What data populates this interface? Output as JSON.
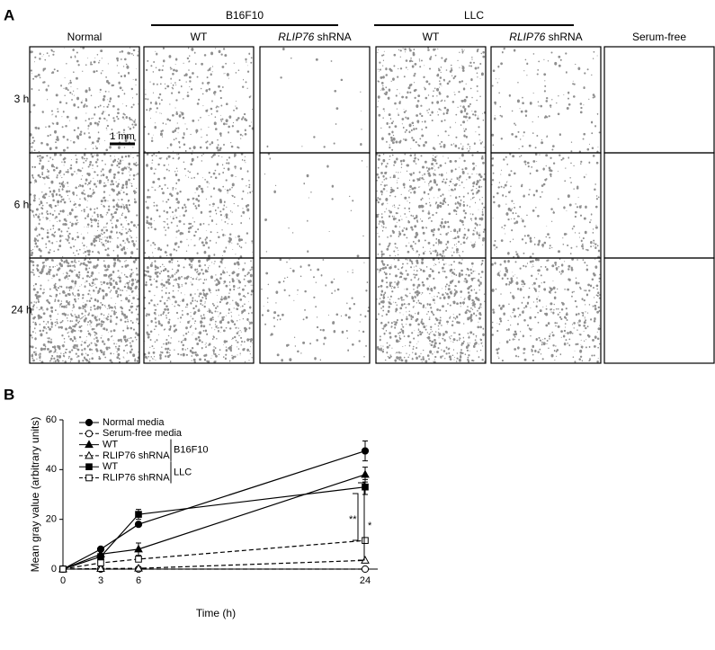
{
  "panel_a": {
    "label": "A",
    "groups": [
      "B16F10",
      "LLC"
    ],
    "columns": [
      {
        "text": "Normal"
      },
      {
        "text": "WT"
      },
      {
        "gene": "RLIP76",
        "text": "shRNA"
      },
      {
        "text": "WT"
      },
      {
        "gene": "RLIP76",
        "text": "shRNA"
      },
      {
        "text": "Serum-free"
      }
    ],
    "rows": [
      "3 h",
      "6 h",
      "24 h"
    ],
    "scale_bar": "1 mm"
  },
  "panel_b": {
    "label": "B"
  },
  "chart_data": {
    "type": "line",
    "x_label": "Time (h)",
    "y_label": "Mean gray value (arbitrary units)",
    "x": [
      0,
      3,
      6,
      24
    ],
    "xlim": [
      0,
      25
    ],
    "xticks": [
      0,
      3,
      6,
      24
    ],
    "ylim": [
      0,
      60
    ],
    "yticks": [
      0,
      20,
      40,
      60
    ],
    "series": [
      {
        "name": "Normal media",
        "color": "#000000",
        "marker": "circle",
        "filled": true,
        "dash": false,
        "values": [
          0,
          8,
          18,
          47.5
        ],
        "errors": [
          null,
          null,
          null,
          4
        ]
      },
      {
        "name": "Serum-free media",
        "color": "#000000",
        "marker": "circle",
        "filled": false,
        "dash": true,
        "values": [
          0,
          0,
          0,
          0
        ],
        "errors": [
          null,
          null,
          null,
          null
        ]
      },
      {
        "name": "WT",
        "color": "#000000",
        "marker": "triangle",
        "filled": true,
        "dash": false,
        "values": [
          0,
          6,
          8,
          38
        ],
        "errors": [
          null,
          null,
          2.5,
          3
        ]
      },
      {
        "name": "RLIP76 shRNA",
        "color": "#000000",
        "marker": "triangle",
        "filled": false,
        "dash": true,
        "values": [
          0,
          0.2,
          0.3,
          3.5
        ],
        "errors": [
          null,
          null,
          null,
          null
        ]
      },
      {
        "name": "WT",
        "color": "#000000",
        "marker": "square",
        "filled": true,
        "dash": false,
        "values": [
          0,
          5,
          22,
          33
        ],
        "errors": [
          null,
          null,
          2,
          3
        ]
      },
      {
        "name": "RLIP76 shRNA",
        "color": "#000000",
        "marker": "square",
        "filled": false,
        "dash": true,
        "values": [
          0,
          2.5,
          4,
          11.5
        ],
        "errors": [
          null,
          null,
          null,
          null
        ]
      }
    ],
    "legend_groups": [
      "B16F10",
      "LLC"
    ],
    "annotations": [
      "**",
      "*"
    ]
  }
}
